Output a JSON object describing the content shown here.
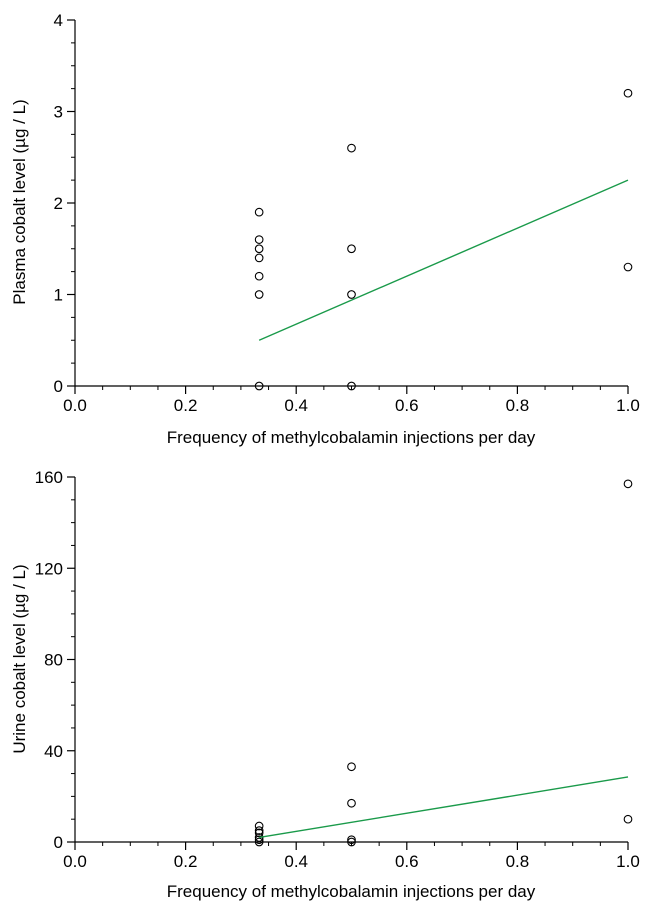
{
  "chart_data": [
    {
      "type": "scatter",
      "title": "",
      "xlabel": "Frequency of methylcobalamin injections per day",
      "ylabel": "Plasma cobalt level (µg / L)",
      "xlim": [
        0,
        1
      ],
      "ylim": [
        0,
        4
      ],
      "x_ticks": [
        "0.0",
        "0.2",
        "0.4",
        "0.6",
        "0.8",
        "1.0"
      ],
      "y_ticks": [
        "0",
        "1",
        "2",
        "3",
        "4"
      ],
      "grid": false,
      "colors": {
        "points": "#000000",
        "fit_line": "#1a9a4a"
      },
      "series": [
        {
          "type": "scatter",
          "x": [
            0.333,
            0.333,
            0.333,
            0.333,
            0.333,
            0.333,
            0.333,
            0.5,
            0.5,
            0.5,
            0.5,
            1.0,
            1.0
          ],
          "y": [
            1.9,
            1.6,
            1.5,
            1.4,
            1.2,
            1.0,
            0.0,
            2.6,
            1.5,
            1.0,
            0.0,
            3.2,
            1.3
          ]
        },
        {
          "type": "line",
          "x": [
            0.333,
            1.0
          ],
          "y": [
            0.5,
            2.25
          ]
        }
      ]
    },
    {
      "type": "scatter",
      "title": "",
      "xlabel": "Frequency of methylcobalamin injections per day",
      "ylabel": "Urine cobalt level (µg / L)",
      "xlim": [
        0,
        1
      ],
      "ylim": [
        0,
        160
      ],
      "x_ticks": [
        "0.0",
        "0.2",
        "0.4",
        "0.6",
        "0.8",
        "1.0"
      ],
      "y_ticks": [
        "0",
        "40",
        "80",
        "120",
        "160"
      ],
      "grid": false,
      "colors": {
        "points": "#000000",
        "fit_line": "#1a9a4a"
      },
      "series": [
        {
          "type": "scatter",
          "x": [
            0.333,
            0.333,
            0.333,
            0.333,
            0.333,
            0.333,
            0.5,
            0.5,
            0.5,
            0.5,
            1.0,
            1.0
          ],
          "y": [
            7,
            5,
            4,
            2,
            1,
            0,
            33,
            17,
            1,
            0,
            157,
            10
          ]
        },
        {
          "type": "line",
          "x": [
            0.333,
            1.0
          ],
          "y": [
            2,
            28.5
          ]
        }
      ]
    }
  ]
}
